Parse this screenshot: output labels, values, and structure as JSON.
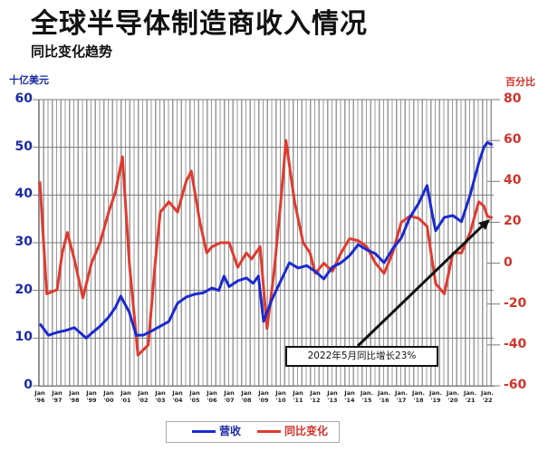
{
  "header": {
    "title": "全球半导体制造商收入情况",
    "subtitle": "同比变化趋势",
    "left_unit": "十亿美元",
    "right_unit": "百分比"
  },
  "annotation": {
    "text": "2022年5月同比增长23%"
  },
  "legend": {
    "items": [
      {
        "label": "营收",
        "color": "#1a2ad0"
      },
      {
        "label": "同比变化",
        "color": "#e03a2f"
      }
    ]
  },
  "axes": {
    "left_ticks": [
      "60",
      "50",
      "40",
      "30",
      "20",
      "10",
      "0"
    ],
    "right_ticks": [
      "80",
      "60",
      "40",
      "20",
      "0",
      "-20",
      "-40",
      "-60"
    ],
    "x_ticks": [
      {
        "m": "Jan",
        "y": "'96"
      },
      {
        "m": "Jan",
        "y": "'97"
      },
      {
        "m": "Jan",
        "y": "'98"
      },
      {
        "m": "Jan",
        "y": "'99"
      },
      {
        "m": "Jan",
        "y": "'00"
      },
      {
        "m": "Jan",
        "y": "'01"
      },
      {
        "m": "Jan",
        "y": "'02"
      },
      {
        "m": "Jan",
        "y": "'03"
      },
      {
        "m": "Jan",
        "y": "'04"
      },
      {
        "m": "Jan",
        "y": "'05"
      },
      {
        "m": "Jan",
        "y": "'06"
      },
      {
        "m": "Jan",
        "y": "'07"
      },
      {
        "m": "Jan",
        "y": "'08"
      },
      {
        "m": "Jan",
        "y": "'09"
      },
      {
        "m": "Jan",
        "y": "'10"
      },
      {
        "m": "Jan",
        "y": "'11"
      },
      {
        "m": "Jan",
        "y": "'12"
      },
      {
        "m": "Jan",
        "y": "'13"
      },
      {
        "m": "Jan",
        "y": "'14"
      },
      {
        "m": "Jan.",
        "y": "'15"
      },
      {
        "m": "Jan.",
        "y": "'16"
      },
      {
        "m": "Jan.",
        "y": "'17"
      },
      {
        "m": "Jan.",
        "y": "'18"
      },
      {
        "m": "Jan.",
        "y": "'19"
      },
      {
        "m": "Jan.",
        "y": "'20"
      },
      {
        "m": "Jan.",
        "y": "'21"
      },
      {
        "m": "Jan.",
        "y": "'22"
      }
    ]
  },
  "chart_data": {
    "type": "line",
    "title": "全球半导体制造商收入情况",
    "subtitle": "同比变化趋势",
    "xlabel": "",
    "ylabel_left": "十亿美元",
    "ylabel_right": "百分比",
    "ylim_left": [
      0,
      60
    ],
    "ylim_right": [
      -60,
      80
    ],
    "xlim": [
      1996,
      2022.4
    ],
    "grid": "vertical quarterly + horizontal major",
    "legend_position": "bottom",
    "annotation": "2022年5月同比增长23%",
    "series": [
      {
        "name": "营收",
        "axis": "left",
        "color": "#1a2ad0",
        "x": [
          1996.0,
          1996.5,
          1997.0,
          1997.5,
          1998.0,
          1998.7,
          1999.0,
          1999.5,
          2000.0,
          2000.4,
          2000.7,
          2001.2,
          2001.6,
          2002.0,
          2002.5,
          2003.0,
          2003.5,
          2004.0,
          2004.5,
          2005.0,
          2005.5,
          2006.0,
          2006.4,
          2006.7,
          2007.0,
          2007.5,
          2008.0,
          2008.4,
          2008.7,
          2009.0,
          2009.5,
          2010.0,
          2010.5,
          2011.0,
          2011.5,
          2012.0,
          2012.5,
          2013.0,
          2013.5,
          2014.0,
          2014.5,
          2015.0,
          2015.5,
          2016.0,
          2016.5,
          2017.0,
          2017.5,
          2018.0,
          2018.5,
          2018.8,
          2019.0,
          2019.5,
          2020.0,
          2020.5,
          2021.0,
          2021.5,
          2021.8,
          2022.0,
          2022.3
        ],
        "values": [
          13.0,
          10.6,
          11.2,
          11.6,
          12.2,
          10.0,
          11.0,
          12.5,
          14.4,
          16.5,
          18.8,
          15.4,
          10.6,
          10.6,
          11.5,
          12.5,
          13.5,
          17.3,
          18.6,
          19.2,
          19.5,
          20.5,
          20.0,
          23.0,
          20.8,
          22.0,
          22.6,
          21.5,
          23.0,
          13.5,
          18.2,
          22.0,
          25.8,
          24.7,
          25.2,
          24.0,
          22.4,
          24.9,
          25.8,
          27.3,
          29.6,
          28.5,
          27.7,
          25.8,
          28.7,
          31.0,
          35.3,
          38.2,
          42.0,
          36.0,
          32.5,
          35.3,
          35.7,
          34.4,
          40.0,
          46.7,
          50.0,
          51.0,
          50.5
        ]
      },
      {
        "name": "同比变化",
        "axis": "right",
        "color": "#e03a2f",
        "x": [
          1996.0,
          1996.4,
          1996.7,
          1997.0,
          1997.3,
          1997.6,
          1998.0,
          1998.5,
          1999.0,
          1999.5,
          2000.0,
          2000.4,
          2000.8,
          2001.2,
          2001.7,
          2002.3,
          2002.7,
          2003.0,
          2003.5,
          2004.0,
          2004.5,
          2004.8,
          2005.3,
          2005.7,
          2006.0,
          2006.5,
          2007.0,
          2007.5,
          2008.0,
          2008.3,
          2008.8,
          2009.2,
          2009.6,
          2010.0,
          2010.3,
          2010.8,
          2011.3,
          2011.7,
          2012.0,
          2012.5,
          2013.0,
          2013.5,
          2014.0,
          2014.5,
          2015.0,
          2015.5,
          2016.0,
          2016.5,
          2017.0,
          2017.5,
          2018.0,
          2018.5,
          2019.0,
          2019.5,
          2020.0,
          2020.5,
          2021.0,
          2021.5,
          2021.8,
          2022.0,
          2022.3
        ],
        "values": [
          40,
          -15,
          -14,
          -13,
          5,
          15,
          2,
          -17,
          0,
          10,
          25,
          35,
          52,
          0,
          -45,
          -40,
          0,
          25,
          30,
          25,
          40,
          45,
          20,
          5,
          8,
          10,
          10,
          -2,
          5,
          2,
          8,
          -32,
          -5,
          30,
          60,
          30,
          10,
          5,
          -5,
          0,
          -4,
          5,
          12,
          11,
          8,
          0,
          -5,
          5,
          20,
          23,
          22,
          18,
          -10,
          -15,
          5,
          5,
          15,
          30,
          28,
          23,
          22
        ]
      }
    ]
  }
}
